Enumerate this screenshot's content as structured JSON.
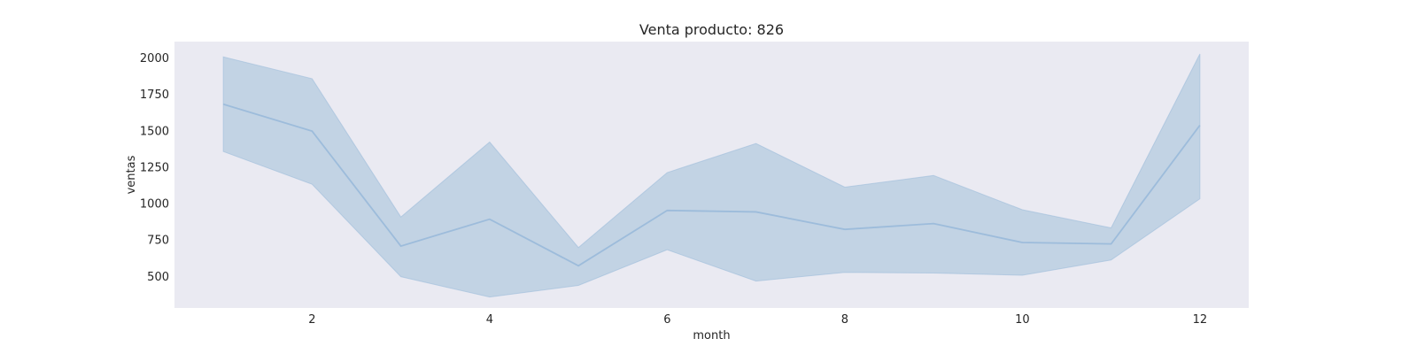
{
  "chart_data": {
    "type": "line",
    "title": "Venta producto: 826",
    "xlabel": "month",
    "ylabel": "ventas",
    "x": [
      1,
      2,
      3,
      4,
      5,
      6,
      7,
      8,
      9,
      10,
      11,
      12
    ],
    "xticks": [
      2,
      4,
      6,
      8,
      10,
      12
    ],
    "yticks": [
      500,
      750,
      1000,
      1250,
      1500,
      1750,
      2000
    ],
    "xlim": [
      0.45,
      12.55
    ],
    "ylim": [
      280,
      2110
    ],
    "grid": false,
    "series": [
      {
        "name": "ventas",
        "values": [
          1680,
          1495,
          705,
          890,
          570,
          950,
          940,
          820,
          860,
          730,
          720,
          1535
        ],
        "ci_lower": [
          1355,
          1130,
          495,
          355,
          435,
          680,
          465,
          525,
          520,
          505,
          610,
          1030
        ],
        "ci_upper": [
          2005,
          1855,
          905,
          1420,
          695,
          1210,
          1410,
          1110,
          1190,
          955,
          830,
          2025
        ]
      }
    ],
    "colors": {
      "line": "#9dbcdb",
      "band": "#c2d3e4",
      "plot_bg": "#eaeaf2",
      "text": "#262626"
    }
  }
}
